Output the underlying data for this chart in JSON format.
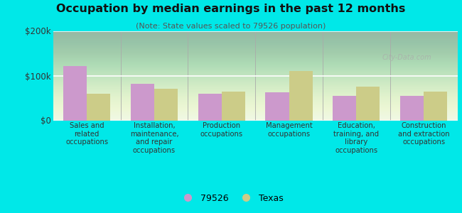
{
  "title": "Occupation by median earnings in the past 12 months",
  "subtitle": "(Note: State values scaled to 79526 population)",
  "categories": [
    "Sales and\nrelated\noccupations",
    "Installation,\nmaintenance,\nand repair\noccupations",
    "Production\noccupations",
    "Management\noccupations",
    "Education,\ntraining, and\nlibrary\noccupations",
    "Construction\nand extraction\noccupations"
  ],
  "values_79526": [
    122000,
    82000,
    60000,
    62000,
    54000,
    54000
  ],
  "values_texas": [
    60000,
    70000,
    65000,
    110000,
    76000,
    65000
  ],
  "color_79526": "#cc99cc",
  "color_texas": "#cccc88",
  "ylim": [
    0,
    200000
  ],
  "yticks": [
    0,
    100000,
    200000
  ],
  "ytick_labels": [
    "$0",
    "$100k",
    "$200k"
  ],
  "outer_bg": "#00e8e8",
  "bar_width": 0.35,
  "legend_labels": [
    "79526",
    "Texas"
  ]
}
